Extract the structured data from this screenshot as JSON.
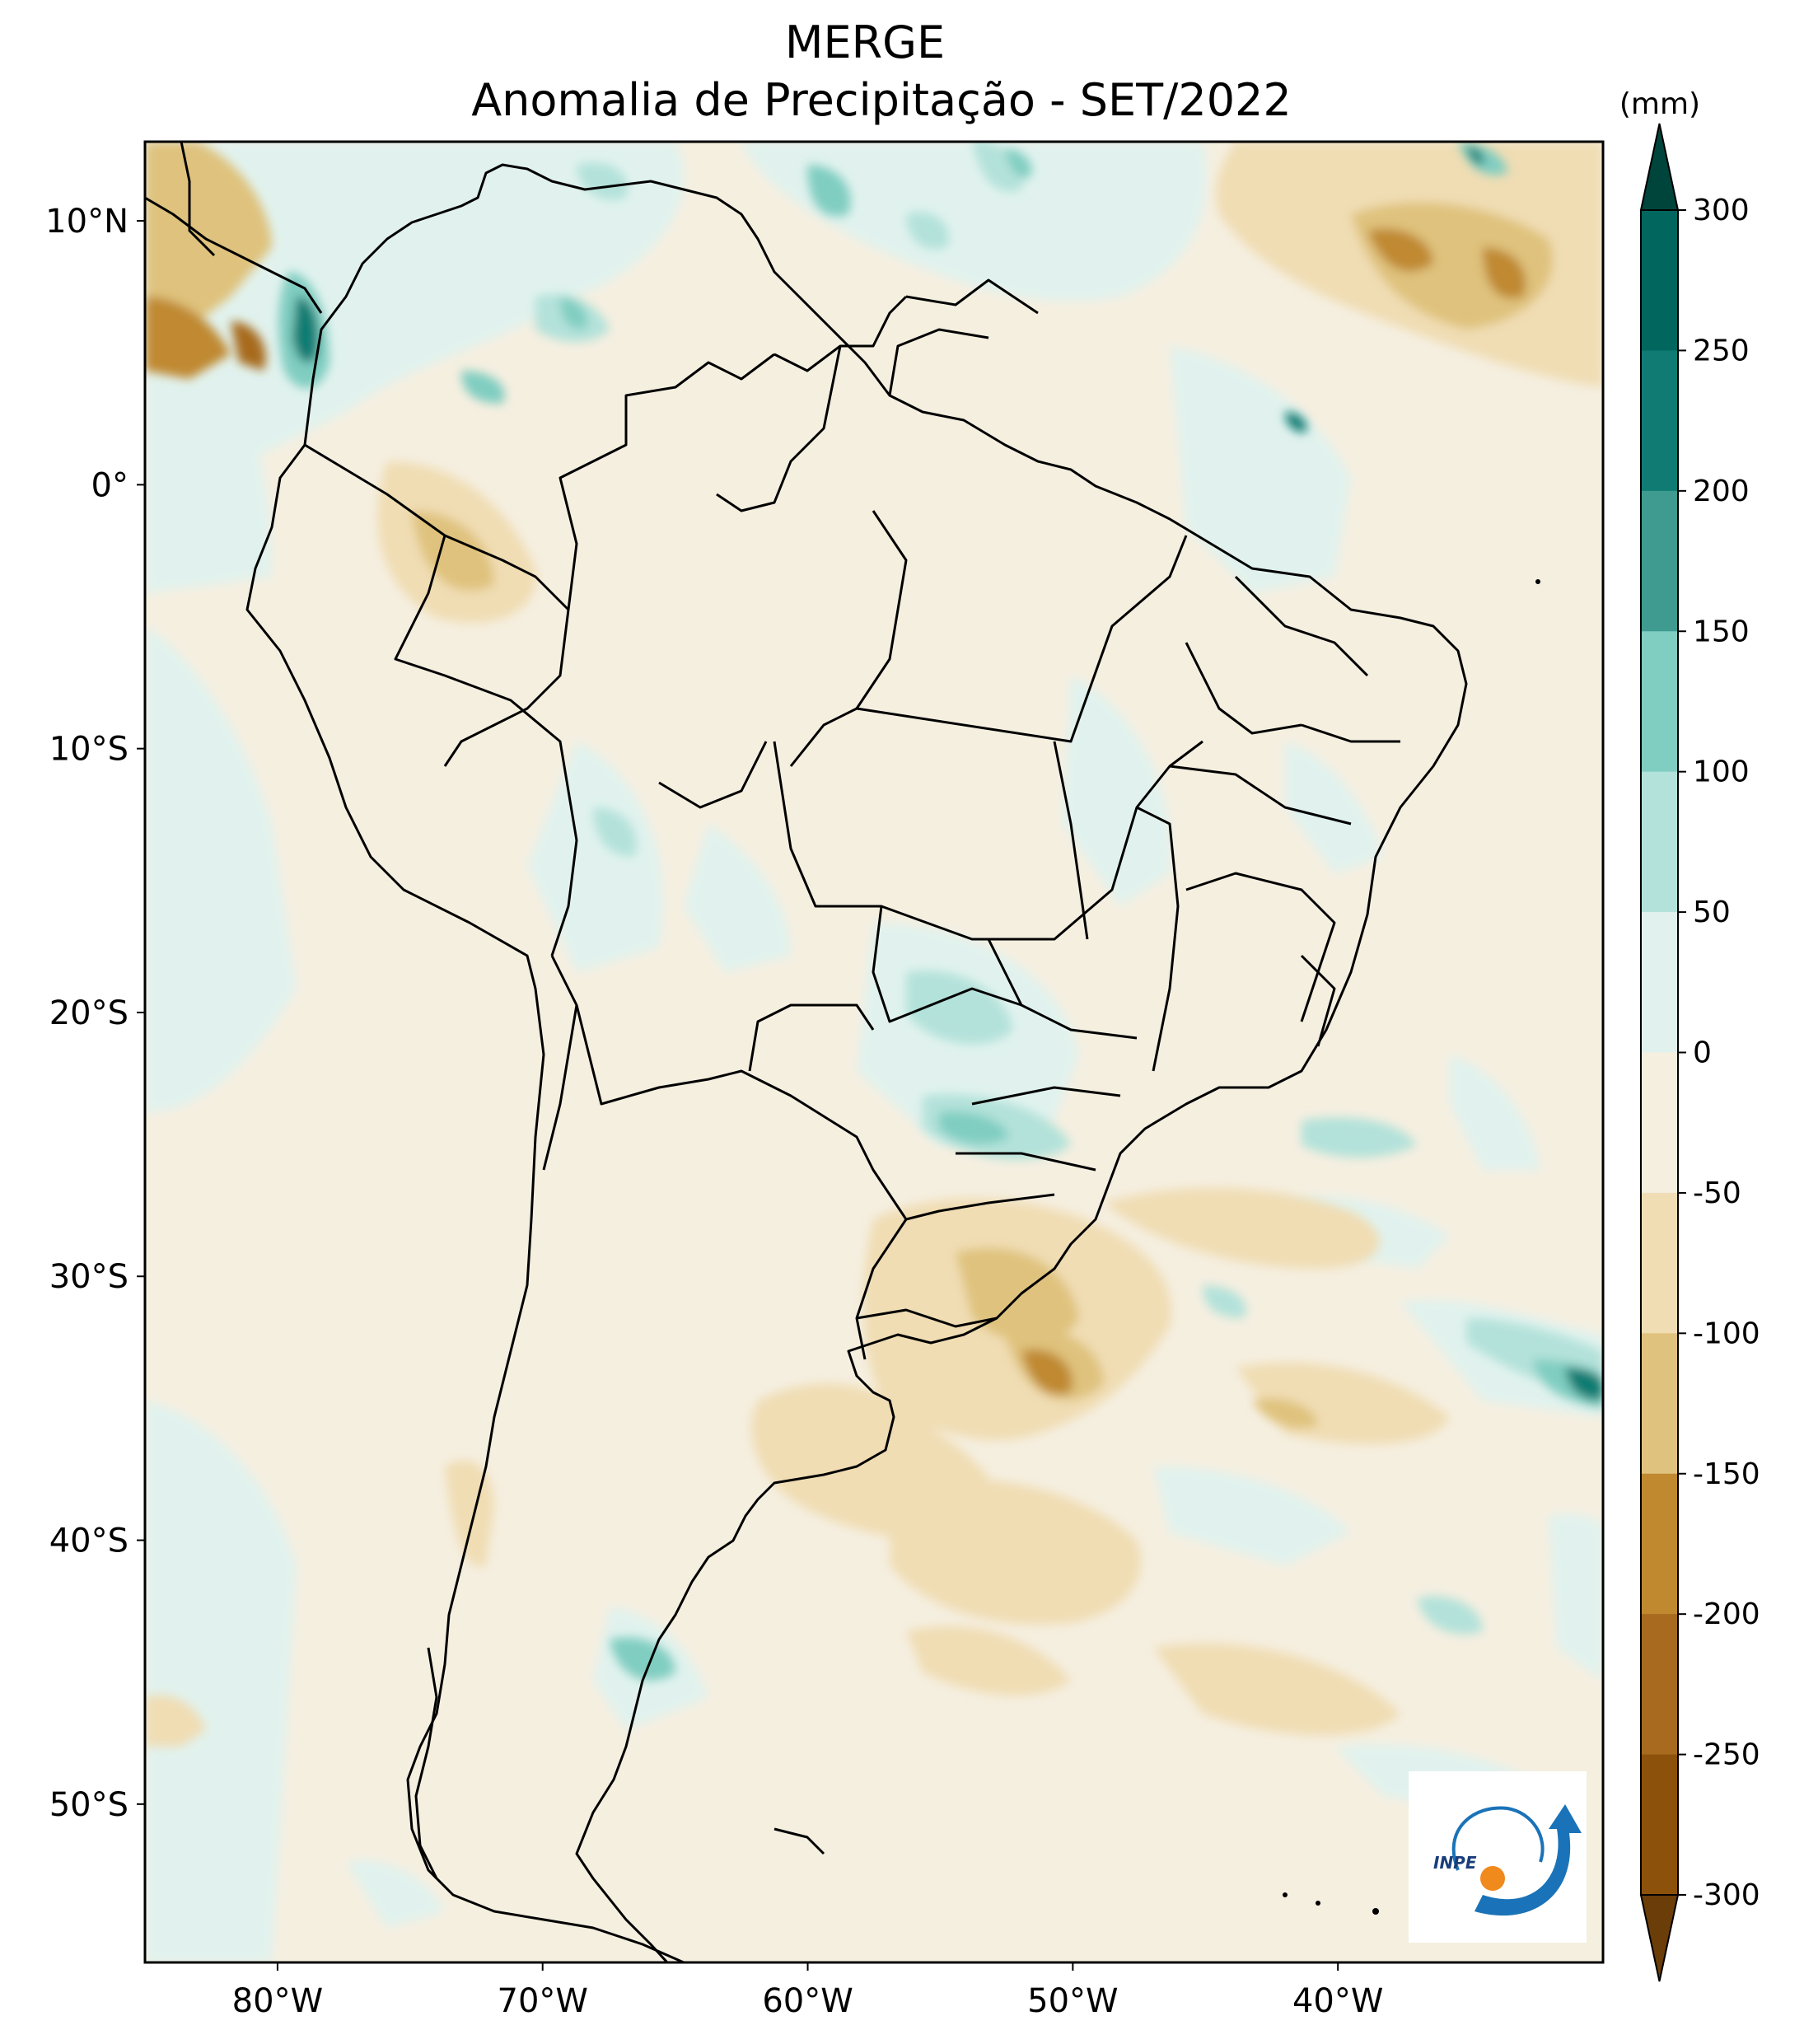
{
  "title": {
    "line1": "MERGE",
    "line2": "Anomalia de Precipitação - SET/2022"
  },
  "map": {
    "lon_range": [
      -85,
      -30
    ],
    "lat_range": [
      -56,
      13
    ],
    "lat_ticks": [
      {
        "value": 10,
        "label": "10°N"
      },
      {
        "value": 0,
        "label": "0°"
      },
      {
        "value": -10,
        "label": "10°S"
      },
      {
        "value": -20,
        "label": "20°S"
      },
      {
        "value": -30,
        "label": "30°S"
      },
      {
        "value": -40,
        "label": "40°S"
      },
      {
        "value": -50,
        "label": "50°S"
      }
    ],
    "lon_ticks": [
      {
        "value": -80,
        "label": "80°W"
      },
      {
        "value": -70,
        "label": "70°W"
      },
      {
        "value": -60,
        "label": "60°W"
      },
      {
        "value": -50,
        "label": "50°W"
      },
      {
        "value": -40,
        "label": "40°W"
      }
    ]
  },
  "colorbar": {
    "unit": "(mm)",
    "levels": [
      300,
      250,
      200,
      150,
      100,
      50,
      0,
      -50,
      -100,
      -150,
      -200,
      -250,
      -300
    ],
    "level_labels": [
      "300",
      "250",
      "200",
      "150",
      "100",
      "50",
      "0",
      "-50",
      "-100",
      "-150",
      "-200",
      "-250",
      "-300"
    ],
    "colors": [
      "#00453c",
      "#01665e",
      "#107b72",
      "#3f9b90",
      "#80cdc1",
      "#b3e2da",
      "#e1f2ee",
      "#f5efe0",
      "#f0ddb4",
      "#dfc27d",
      "#c08930",
      "#a76a1f",
      "#8c510a",
      "#6b3d08"
    ]
  },
  "logo": {
    "text": "INPE",
    "colors": {
      "arrow": "#1a73b8",
      "sun": "#f08a1c"
    }
  },
  "colors": {
    "ocean_bg": "#e9f5f1",
    "land_bg": "#f5efe0",
    "dry_light": "#f0ddb4",
    "dry_mid": "#dfc27d",
    "dry_strong": "#c08930",
    "wet_light": "#b3e2da",
    "wet_mid": "#80cdc1",
    "wet_strong": "#01665e"
  }
}
